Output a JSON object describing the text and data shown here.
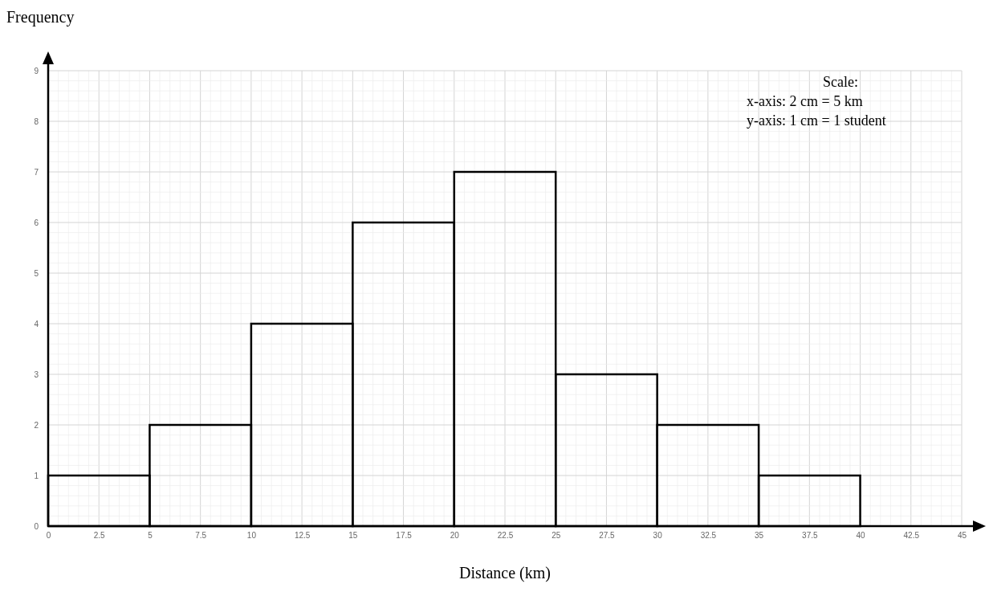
{
  "chart_data": {
    "type": "histogram",
    "xlabel": "Distance (km)",
    "ylabel": "Frequency",
    "bins": [
      0,
      5,
      10,
      15,
      20,
      25,
      30,
      35,
      40
    ],
    "values": [
      1,
      2,
      4,
      6,
      7,
      3,
      2,
      1
    ],
    "color": "#000000",
    "xlim": [
      0,
      45
    ],
    "xticks": [
      0,
      2.5,
      5,
      7.5,
      10,
      12.5,
      15,
      17.5,
      20,
      22.5,
      25,
      27.5,
      30,
      32.5,
      35,
      37.5,
      40,
      42.5,
      45
    ],
    "ylim": [
      0,
      9
    ],
    "yticks": [
      0,
      1,
      2,
      3,
      4,
      5,
      6,
      7,
      8,
      9
    ],
    "grid": true,
    "annotations": [
      "Scale:",
      "x-axis: 2 cm = 5 km",
      "y-axis: 1 cm = 1 student"
    ]
  }
}
